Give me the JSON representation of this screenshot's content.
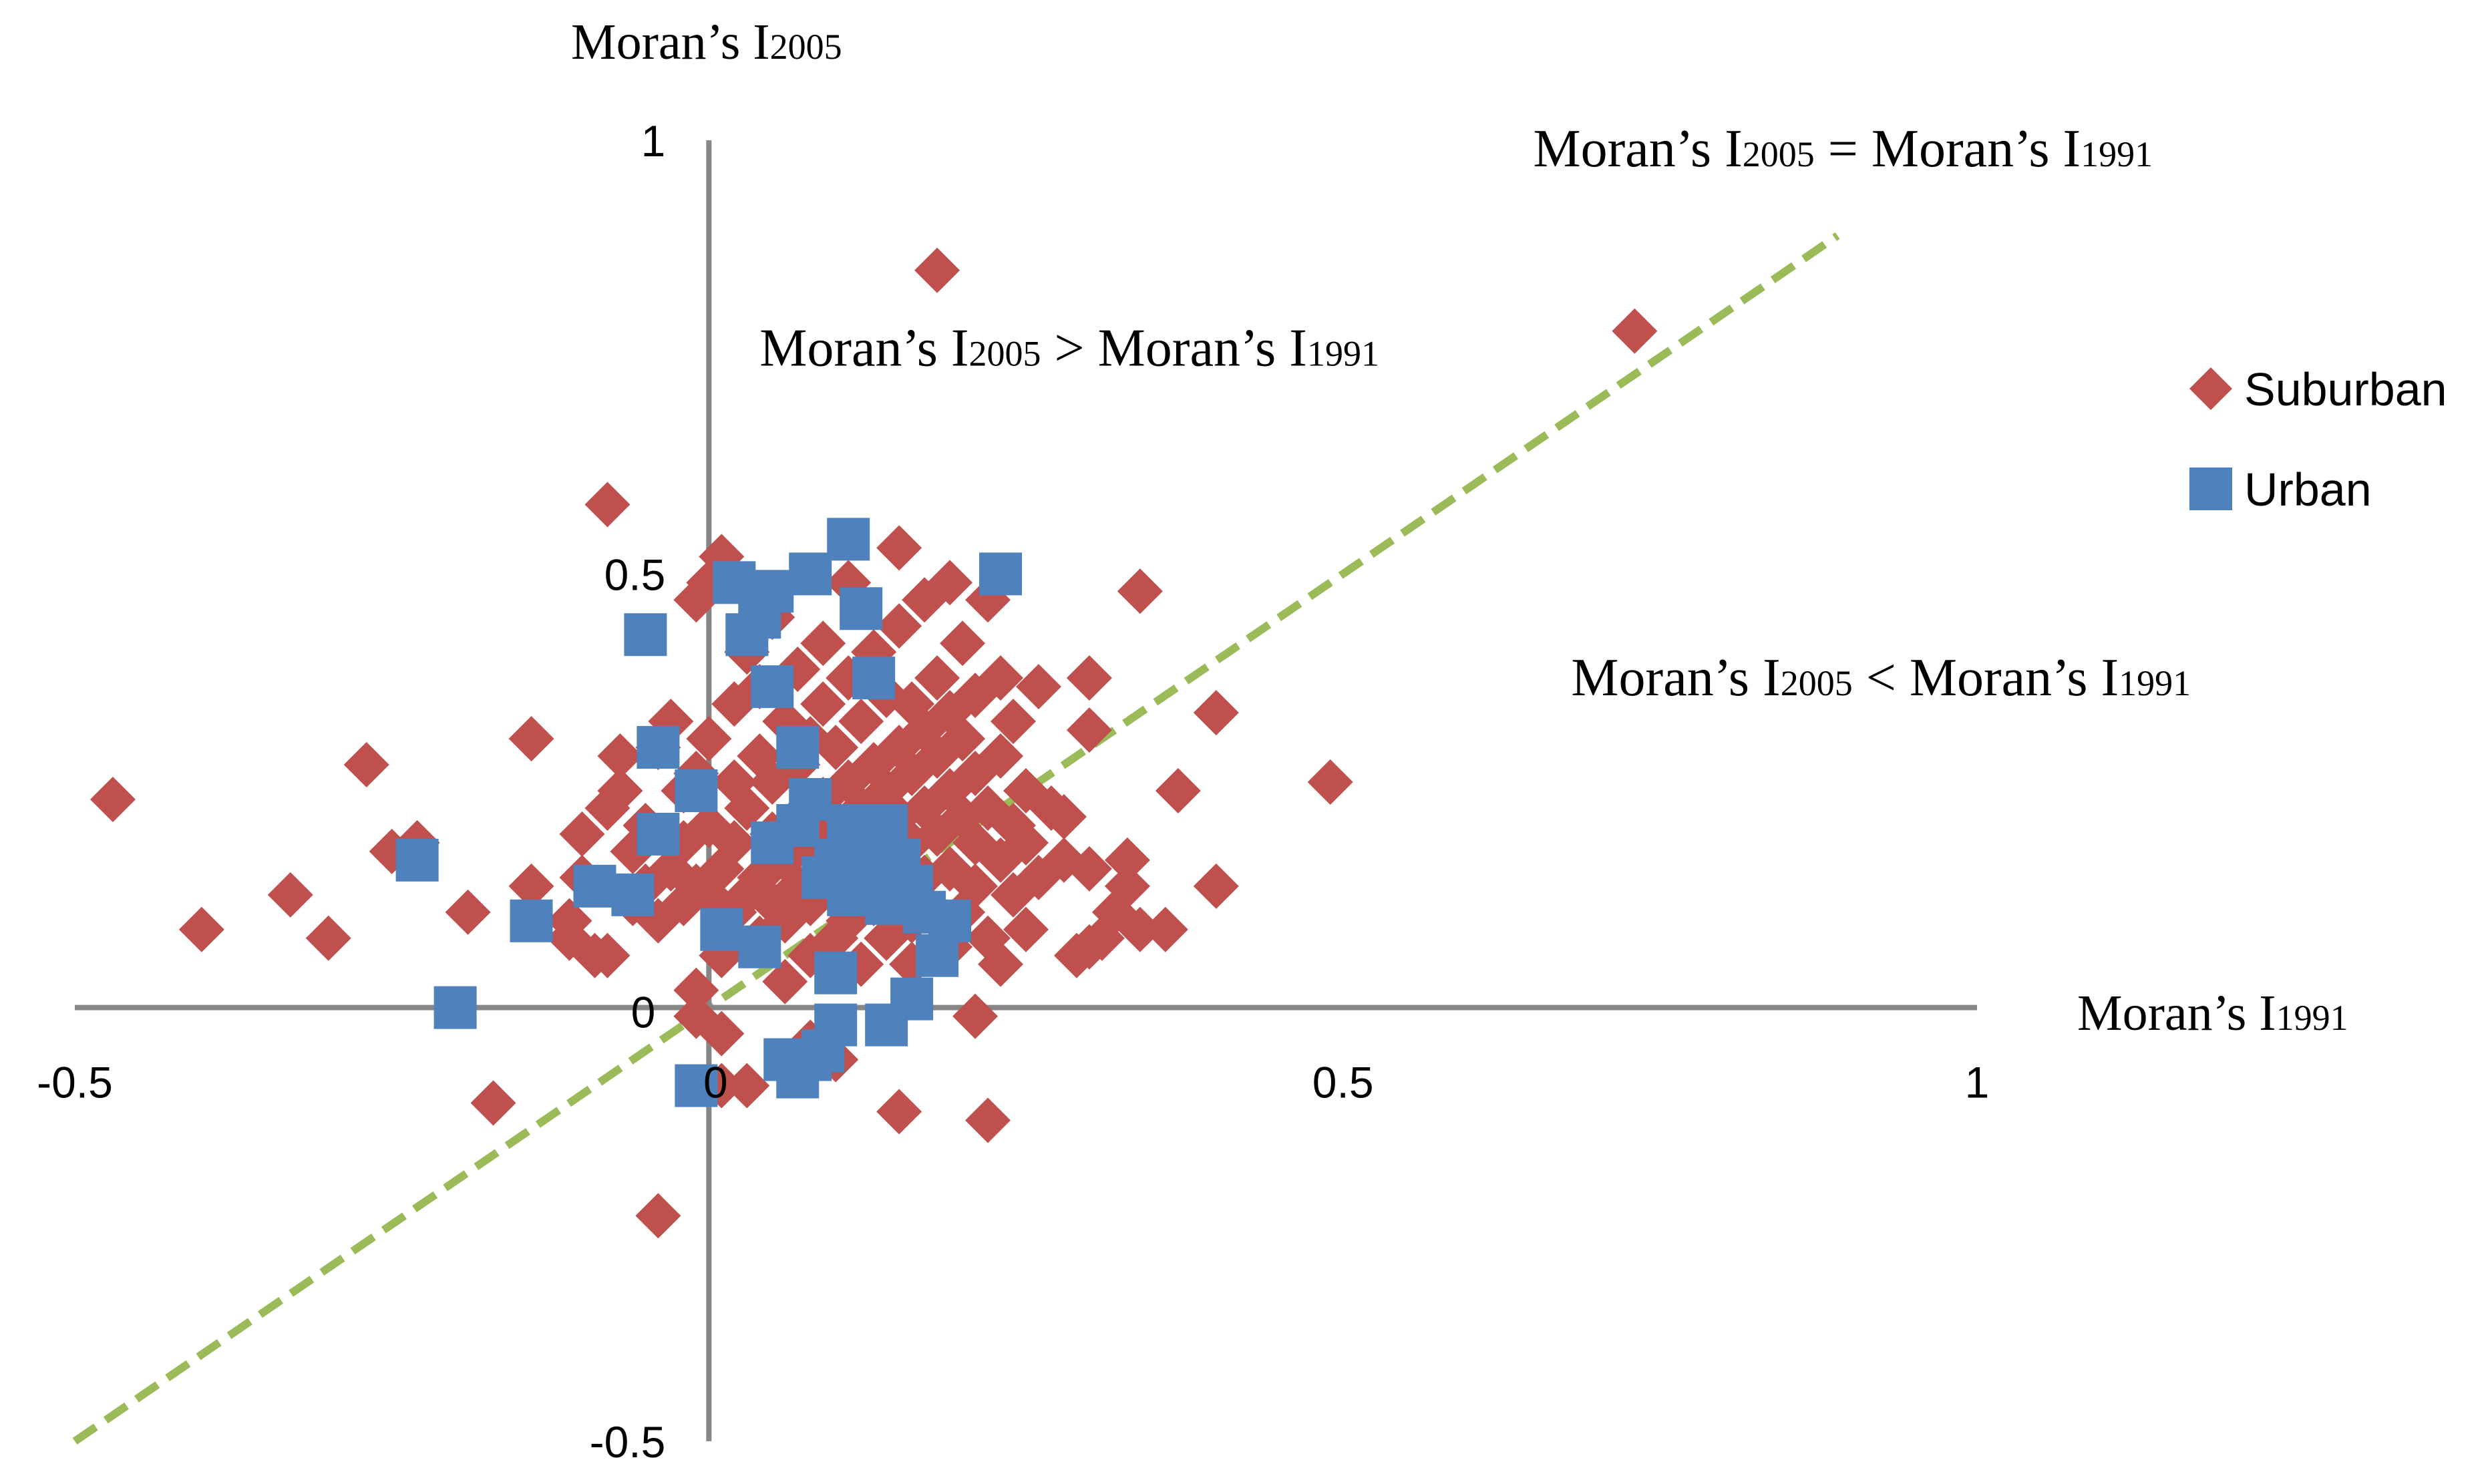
{
  "chart_data": {
    "type": "scatter",
    "title": "",
    "xlabel": {
      "main": "Moran’s I",
      "sub": "1991"
    },
    "ylabel": {
      "main": "Moran’s I",
      "sub": "2005"
    },
    "xlim": [
      -0.5,
      1
    ],
    "ylim": [
      -0.5,
      1
    ],
    "x_ticks": [
      -0.5,
      0,
      0.5,
      1
    ],
    "y_ticks": [
      -0.5,
      0,
      0.5,
      1
    ],
    "x_tick_labels": [
      "-0.5",
      "0",
      "0.5",
      "1"
    ],
    "y_tick_labels": [
      "-0.5",
      "0",
      "0.5",
      "1"
    ],
    "grid": false,
    "legend_position": "right",
    "reference_line": {
      "from": [
        -0.5,
        -0.5
      ],
      "to": [
        0.89,
        0.89
      ],
      "color": "#9BBB59",
      "style": "dashed"
    },
    "annotations": [
      {
        "parts": [
          "Moran’s I",
          "2005",
          " = Moran’s I",
          "1991"
        ],
        "x": 0.65,
        "y": 0.97
      },
      {
        "parts": [
          "Moran’s I",
          "2005",
          " > Moran’s I",
          "1991"
        ],
        "x": 0.04,
        "y": 0.74
      },
      {
        "parts": [
          "Moran’s I",
          "2005",
          " < Moran’s I",
          "1991"
        ],
        "x": 0.68,
        "y": 0.36
      }
    ],
    "series": [
      {
        "name": "Suburban",
        "marker": "diamond",
        "color": "#C0504D",
        "points": [
          [
            -0.47,
            0.24
          ],
          [
            -0.4,
            0.09
          ],
          [
            -0.33,
            0.13
          ],
          [
            -0.3,
            0.08
          ],
          [
            -0.27,
            0.28
          ],
          [
            -0.25,
            0.18
          ],
          [
            -0.23,
            0.19
          ],
          [
            -0.19,
            0.11
          ],
          [
            -0.17,
            -0.11
          ],
          [
            -0.14,
            0.14
          ],
          [
            -0.14,
            0.31
          ],
          [
            -0.11,
            0.08
          ],
          [
            -0.11,
            0.1
          ],
          [
            -0.1,
            0.15
          ],
          [
            -0.1,
            0.2
          ],
          [
            -0.09,
            0.06
          ],
          [
            -0.08,
            0.06
          ],
          [
            -0.08,
            0.23
          ],
          [
            -0.08,
            0.58
          ],
          [
            -0.07,
            0.25
          ],
          [
            -0.07,
            0.29
          ],
          [
            -0.06,
            0.12
          ],
          [
            -0.06,
            0.18
          ],
          [
            -0.05,
            0.14
          ],
          [
            -0.05,
            0.21
          ],
          [
            -0.04,
            0.1
          ],
          [
            -0.04,
            0.3
          ],
          [
            -0.04,
            -0.24
          ],
          [
            -0.03,
            0.16
          ],
          [
            -0.03,
            0.33
          ],
          [
            -0.02,
            0.12
          ],
          [
            -0.02,
            0.19
          ],
          [
            -0.02,
            0.25
          ],
          [
            -0.01,
            0.14
          ],
          [
            -0.01,
            0.27
          ],
          [
            -0.01,
            0.47
          ],
          [
            -0.01,
            0.02
          ],
          [
            -0.01,
            -0.01
          ],
          [
            0.0,
            0.13
          ],
          [
            0.0,
            0.21
          ],
          [
            0.0,
            0.31
          ],
          [
            0.0,
            0.49
          ],
          [
            0.01,
            0.06
          ],
          [
            0.01,
            0.16
          ],
          [
            0.01,
            0.52
          ],
          [
            0.01,
            -0.03
          ],
          [
            0.02,
            0.11
          ],
          [
            0.02,
            0.19
          ],
          [
            0.02,
            0.26
          ],
          [
            0.02,
            0.35
          ],
          [
            0.03,
            0.13
          ],
          [
            0.03,
            0.23
          ],
          [
            0.03,
            0.41
          ],
          [
            0.03,
            -0.09
          ],
          [
            0.04,
            0.08
          ],
          [
            0.04,
            0.15
          ],
          [
            0.04,
            0.29
          ],
          [
            0.04,
            0.37
          ],
          [
            0.05,
            0.12
          ],
          [
            0.05,
            0.2
          ],
          [
            0.05,
            0.26
          ],
          [
            0.05,
            0.45
          ],
          [
            0.06,
            0.03
          ],
          [
            0.06,
            0.1
          ],
          [
            0.06,
            0.17
          ],
          [
            0.06,
            0.33
          ],
          [
            0.07,
            0.14
          ],
          [
            0.07,
            0.22
          ],
          [
            0.07,
            0.28
          ],
          [
            0.07,
            0.39
          ],
          [
            0.08,
            0.06
          ],
          [
            0.08,
            0.12
          ],
          [
            0.08,
            0.19
          ],
          [
            0.08,
            0.31
          ],
          [
            0.08,
            -0.04
          ],
          [
            0.09,
            0.15
          ],
          [
            0.09,
            0.24
          ],
          [
            0.09,
            0.35
          ],
          [
            0.09,
            0.42
          ],
          [
            0.1,
            0.08
          ],
          [
            0.1,
            0.13
          ],
          [
            0.1,
            0.21
          ],
          [
            0.1,
            0.3
          ],
          [
            0.1,
            -0.06
          ],
          [
            0.11,
            0.1
          ],
          [
            0.11,
            0.18
          ],
          [
            0.11,
            0.26
          ],
          [
            0.11,
            0.38
          ],
          [
            0.11,
            0.49
          ],
          [
            0.12,
            0.05
          ],
          [
            0.12,
            0.15
          ],
          [
            0.12,
            0.23
          ],
          [
            0.12,
            0.33
          ],
          [
            0.13,
            0.12
          ],
          [
            0.13,
            0.2
          ],
          [
            0.13,
            0.28
          ],
          [
            0.13,
            0.41
          ],
          [
            0.14,
            0.08
          ],
          [
            0.14,
            0.17
          ],
          [
            0.14,
            0.25
          ],
          [
            0.14,
            0.36
          ],
          [
            0.15,
            0.13
          ],
          [
            0.15,
            0.22
          ],
          [
            0.15,
            0.3
          ],
          [
            0.15,
            0.44
          ],
          [
            0.15,
            0.53
          ],
          [
            0.16,
            0.05
          ],
          [
            0.16,
            0.1
          ],
          [
            0.16,
            0.19
          ],
          [
            0.16,
            0.27
          ],
          [
            0.16,
            0.35
          ],
          [
            0.17,
            0.15
          ],
          [
            0.17,
            0.23
          ],
          [
            0.17,
            0.32
          ],
          [
            0.17,
            0.47
          ],
          [
            0.17,
            0.12
          ],
          [
            0.18,
            0.2
          ],
          [
            0.18,
            0.29
          ],
          [
            0.18,
            0.38
          ],
          [
            0.18,
            0.85
          ],
          [
            0.19,
            0.07
          ],
          [
            0.19,
            0.16
          ],
          [
            0.19,
            0.25
          ],
          [
            0.19,
            0.34
          ],
          [
            0.19,
            0.49
          ],
          [
            0.2,
            0.11
          ],
          [
            0.2,
            0.22
          ],
          [
            0.2,
            0.31
          ],
          [
            0.2,
            0.42
          ],
          [
            0.21,
            0.14
          ],
          [
            0.21,
            0.19
          ],
          [
            0.21,
            0.27
          ],
          [
            0.21,
            0.36
          ],
          [
            0.21,
            -0.01
          ],
          [
            0.22,
            0.08
          ],
          [
            0.22,
            0.23
          ],
          [
            0.22,
            0.47
          ],
          [
            0.23,
            0.17
          ],
          [
            0.23,
            0.29
          ],
          [
            0.23,
            0.38
          ],
          [
            0.23,
            0.05
          ],
          [
            0.24,
            0.13
          ],
          [
            0.24,
            0.21
          ],
          [
            0.24,
            0.33
          ],
          [
            0.25,
            0.09
          ],
          [
            0.25,
            0.19
          ],
          [
            0.25,
            0.25
          ],
          [
            0.26,
            0.15
          ],
          [
            0.26,
            0.37
          ],
          [
            0.27,
            0.23
          ],
          [
            0.28,
            0.17
          ],
          [
            0.28,
            0.22
          ],
          [
            0.29,
            0.06
          ],
          [
            0.3,
            0.07
          ],
          [
            0.3,
            0.16
          ],
          [
            0.3,
            0.32
          ],
          [
            0.3,
            0.38
          ],
          [
            0.31,
            0.08
          ],
          [
            0.32,
            0.11
          ],
          [
            0.33,
            0.14
          ],
          [
            0.33,
            0.17
          ],
          [
            0.34,
            0.09
          ],
          [
            0.34,
            0.48
          ],
          [
            0.36,
            0.09
          ],
          [
            0.37,
            0.25
          ],
          [
            0.4,
            0.14
          ],
          [
            0.4,
            0.34
          ],
          [
            0.49,
            0.26
          ],
          [
            0.73,
            0.78
          ],
          [
            0.15,
            -0.12
          ],
          [
            0.22,
            -0.13
          ],
          [
            0.01,
            -0.09
          ]
        ]
      },
      {
        "name": "Urban",
        "marker": "square",
        "color": "#4F81BD",
        "points": [
          [
            -0.23,
            0.17
          ],
          [
            -0.2,
            0.0
          ],
          [
            -0.14,
            0.1
          ],
          [
            -0.09,
            0.14
          ],
          [
            -0.06,
            0.13
          ],
          [
            -0.05,
            0.43
          ],
          [
            -0.04,
            0.3
          ],
          [
            -0.04,
            0.2
          ],
          [
            -0.01,
            -0.09
          ],
          [
            -0.01,
            0.25
          ],
          [
            0.01,
            0.09
          ],
          [
            0.02,
            0.49
          ],
          [
            0.03,
            0.43
          ],
          [
            0.04,
            0.45
          ],
          [
            0.04,
            0.07
          ],
          [
            0.05,
            0.48
          ],
          [
            0.05,
            0.37
          ],
          [
            0.05,
            0.19
          ],
          [
            0.06,
            -0.06
          ],
          [
            0.07,
            -0.08
          ],
          [
            0.07,
            0.21
          ],
          [
            0.07,
            0.3
          ],
          [
            0.08,
            0.5
          ],
          [
            0.08,
            -0.06
          ],
          [
            0.08,
            0.24
          ],
          [
            0.09,
            -0.05
          ],
          [
            0.09,
            0.15
          ],
          [
            0.1,
            -0.02
          ],
          [
            0.1,
            0.04
          ],
          [
            0.1,
            0.17
          ],
          [
            0.11,
            0.54
          ],
          [
            0.11,
            0.13
          ],
          [
            0.11,
            0.19
          ],
          [
            0.11,
            0.21
          ],
          [
            0.12,
            0.46
          ],
          [
            0.12,
            0.15
          ],
          [
            0.13,
            0.18
          ],
          [
            0.13,
            0.13
          ],
          [
            0.13,
            0.38
          ],
          [
            0.14,
            0.21
          ],
          [
            0.14,
            0.16
          ],
          [
            0.14,
            0.12
          ],
          [
            0.14,
            -0.02
          ],
          [
            0.15,
            0.17
          ],
          [
            0.16,
            0.01
          ],
          [
            0.16,
            0.14
          ],
          [
            0.17,
            0.11
          ],
          [
            0.18,
            0.06
          ],
          [
            0.19,
            0.1
          ],
          [
            0.23,
            0.5
          ]
        ]
      }
    ]
  }
}
